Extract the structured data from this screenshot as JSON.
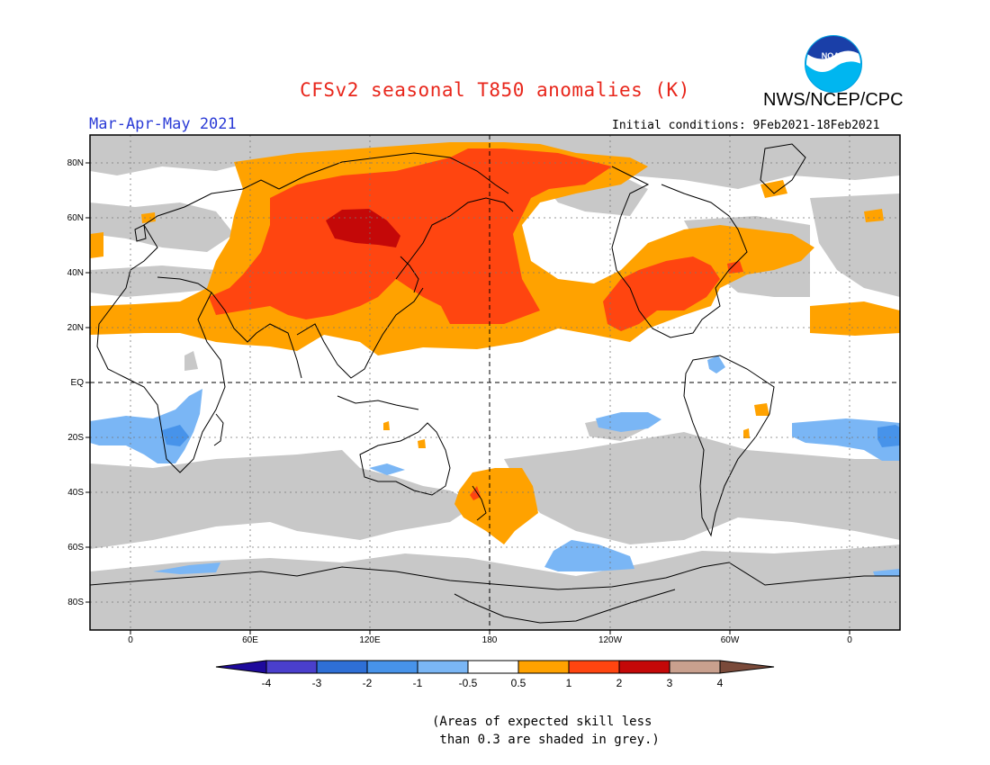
{
  "header": {
    "title": "CFSv2 seasonal T850 anomalies (K)",
    "organization": "NWS/NCEP/CPC",
    "season": "Mar-Apr-May 2021",
    "initial_conditions": "Initial conditions: 9Feb2021-18Feb2021",
    "logo_text": "NOAA"
  },
  "map": {
    "lat_labels": [
      "80N",
      "60N",
      "40N",
      "20N",
      "EQ",
      "20S",
      "40S",
      "60S",
      "80S"
    ],
    "lon_labels": [
      "0",
      "60E",
      "120E",
      "180",
      "120W",
      "60W",
      "0"
    ]
  },
  "colorbar": {
    "labels": [
      "-4",
      "-3",
      "-2",
      "-1",
      "-0.5",
      "0.5",
      "1",
      "2",
      "3",
      "4"
    ],
    "colors": {
      "lt_neg4": "#1e0a9c",
      "neg4_neg3": "#4a3fcc",
      "neg3_neg2": "#2e6fd6",
      "neg2_neg1": "#4793ea",
      "neg1_neg05": "#7ab6f5",
      "neutral": "#ffffff",
      "p05_1": "#ffa200",
      "p1_2": "#ff4510",
      "p2_3": "#c40808",
      "p3_4": "#c9a08e",
      "gt4": "#7a4a3a"
    }
  },
  "footnote": {
    "line1": "(Areas of expected skill less",
    "line2": " than 0.3 are shaded in grey.)"
  }
}
